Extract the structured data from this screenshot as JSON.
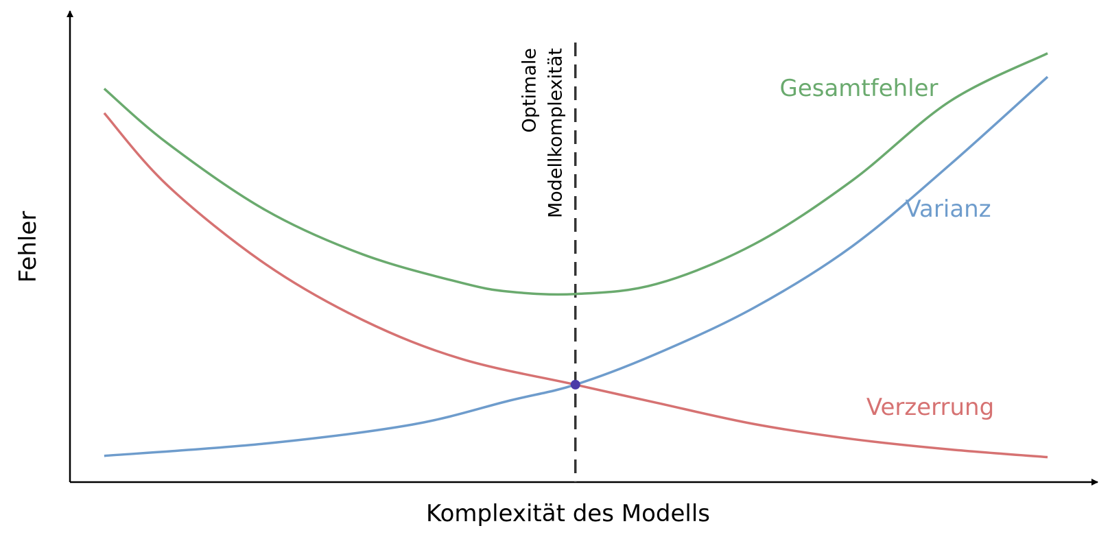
{
  "chart_data": {
    "type": "line",
    "xlabel": "Komplexität des Modells",
    "ylabel": "Fehler",
    "grid": false,
    "xlim": [
      0,
      1
    ],
    "ylim": [
      0,
      1
    ],
    "annotation": {
      "lines": [
        "Optimale",
        "Modellkomplexität"
      ],
      "x": 0.517
    },
    "intersection_point": {
      "x": 0.517,
      "y": 0.215,
      "color": "#4b3aa8"
    },
    "series": [
      {
        "name": "Gesamtfehler",
        "color": "#6aaa6e",
        "x": [
          0.035,
          0.1,
          0.2,
          0.3,
          0.4,
          0.45,
          0.517,
          0.6,
          0.7,
          0.8,
          0.9,
          1.0
        ],
        "y": [
          0.868,
          0.747,
          0.6,
          0.502,
          0.44,
          0.42,
          0.415,
          0.437,
          0.525,
          0.665,
          0.84,
          0.946
        ]
      },
      {
        "name": "Varianz",
        "color": "#6e9ccc",
        "x": [
          0.035,
          0.2,
          0.35,
          0.45,
          0.517,
          0.6,
          0.7,
          0.8,
          0.9,
          1.0
        ],
        "y": [
          0.058,
          0.085,
          0.127,
          0.18,
          0.215,
          0.283,
          0.385,
          0.52,
          0.7,
          0.894
        ]
      },
      {
        "name": "Verzerrung",
        "color": "#d67272",
        "x": [
          0.035,
          0.1,
          0.2,
          0.3,
          0.4,
          0.517,
          0.6,
          0.7,
          0.8,
          0.9,
          1.0
        ],
        "y": [
          0.814,
          0.654,
          0.481,
          0.357,
          0.272,
          0.215,
          0.175,
          0.128,
          0.095,
          0.072,
          0.055
        ]
      }
    ]
  }
}
